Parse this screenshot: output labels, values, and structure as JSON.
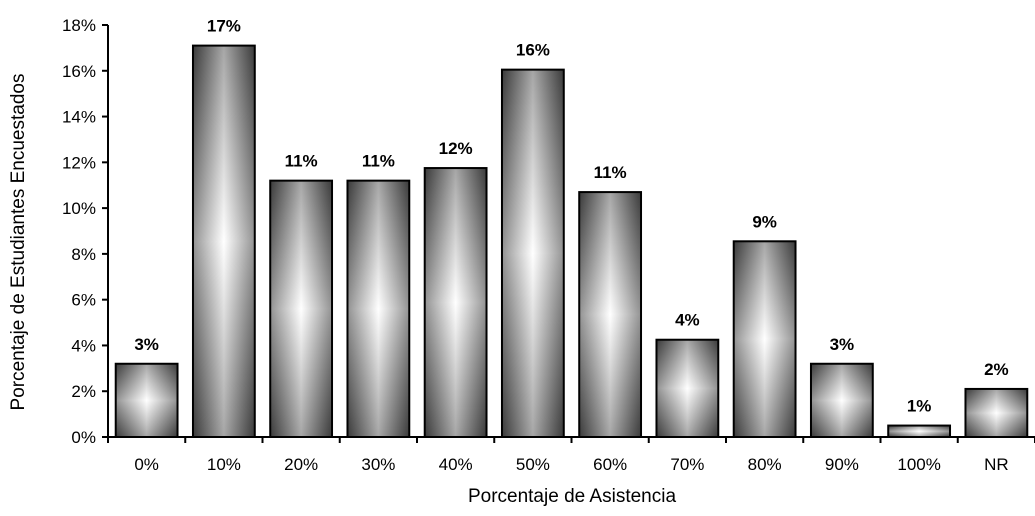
{
  "chart_data": {
    "type": "bar",
    "title": "",
    "xlabel": "Porcentaje de Asistencia",
    "ylabel": "Porcentaje  de Estudiantes Encuestados",
    "categories": [
      "0%",
      "10%",
      "20%",
      "30%",
      "40%",
      "50%",
      "60%",
      "70%",
      "80%",
      "90%",
      "100%",
      "NR"
    ],
    "values": [
      3.2,
      17.1,
      11.2,
      11.2,
      11.75,
      16.05,
      10.7,
      4.25,
      8.55,
      3.2,
      0.5,
      2.1
    ],
    "data_labels": [
      "3%",
      "17%",
      "11%",
      "11%",
      "12%",
      "16%",
      "11%",
      "4%",
      "9%",
      "3%",
      "1%",
      "2%"
    ],
    "ylim": [
      0,
      18
    ],
    "yticks": [
      0,
      2,
      4,
      6,
      8,
      10,
      12,
      14,
      16,
      18
    ],
    "ytick_labels": [
      "0%",
      "2%",
      "4%",
      "6%",
      "8%",
      "10%",
      "12%",
      "14%",
      "16%",
      "18%"
    ],
    "grid": false,
    "legend": "none",
    "bar_fill": "gradient gray-to-white",
    "colors": {
      "dark": "#3c3c3c",
      "light": "#ffffff",
      "outline": "#000000"
    }
  }
}
